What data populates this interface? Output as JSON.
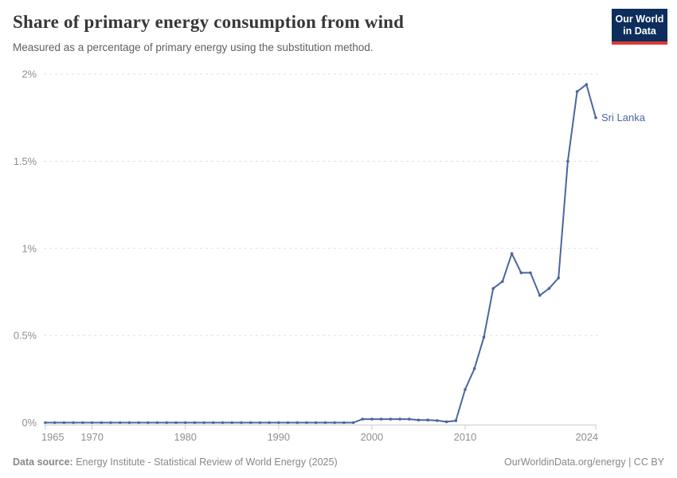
{
  "header": {
    "title": "Share of primary energy consumption from wind",
    "subtitle": "Measured as a percentage of primary energy using the substitution method."
  },
  "logo": {
    "line1": "Our World",
    "line2": "in Data",
    "bg_color": "#0d2e5c",
    "accent_color": "#d93a34"
  },
  "chart_data": {
    "type": "line",
    "title": "Share of primary energy consumption from wind",
    "entity": "Sri Lanka",
    "unit": "%",
    "ylim": [
      0,
      2
    ],
    "grid": "dashed-horizontal",
    "legend": "end-of-line-label",
    "line_color": "#4a66a0",
    "axis_color": "#cccccc",
    "grid_color": "#e0e0e0",
    "label_color": "#8f8f8f",
    "yticks": [
      {
        "v": 0,
        "label": "0%"
      },
      {
        "v": 0.5,
        "label": "0.5%"
      },
      {
        "v": 1,
        "label": "1%"
      },
      {
        "v": 1.5,
        "label": "1.5%"
      },
      {
        "v": 2,
        "label": "2%"
      }
    ],
    "xticks": [
      1965,
      1970,
      1980,
      1990,
      2000,
      2010,
      2024
    ],
    "x": [
      1965,
      1966,
      1967,
      1968,
      1969,
      1970,
      1971,
      1972,
      1973,
      1974,
      1975,
      1976,
      1977,
      1978,
      1979,
      1980,
      1981,
      1982,
      1983,
      1984,
      1985,
      1986,
      1987,
      1988,
      1989,
      1990,
      1991,
      1992,
      1993,
      1994,
      1995,
      1996,
      1997,
      1998,
      1999,
      2000,
      2001,
      2002,
      2003,
      2004,
      2005,
      2006,
      2007,
      2008,
      2009,
      2010,
      2011,
      2012,
      2013,
      2014,
      2015,
      2016,
      2017,
      2018,
      2019,
      2020,
      2021,
      2022,
      2023,
      2024
    ],
    "series": [
      {
        "name": "Sri Lanka",
        "values": [
          0,
          0,
          0,
          0,
          0,
          0,
          0,
          0,
          0,
          0,
          0,
          0,
          0,
          0,
          0,
          0,
          0,
          0,
          0,
          0,
          0,
          0,
          0,
          0,
          0,
          0,
          0,
          0,
          0,
          0,
          0,
          0,
          0,
          0,
          0.02,
          0.02,
          0.02,
          0.02,
          0.02,
          0.02,
          0.015,
          0.015,
          0.012,
          0.005,
          0.011,
          0.19,
          0.31,
          0.49,
          0.77,
          0.81,
          0.97,
          0.86,
          0.86,
          0.73,
          0.77,
          0.83,
          1.5,
          1.9,
          1.94,
          1.75
        ]
      }
    ]
  },
  "footer": {
    "source_label": "Data source:",
    "source_text": "Energy Institute - Statistical Review of World Energy (2025)",
    "credit": "OurWorldinData.org/energy | CC BY"
  }
}
